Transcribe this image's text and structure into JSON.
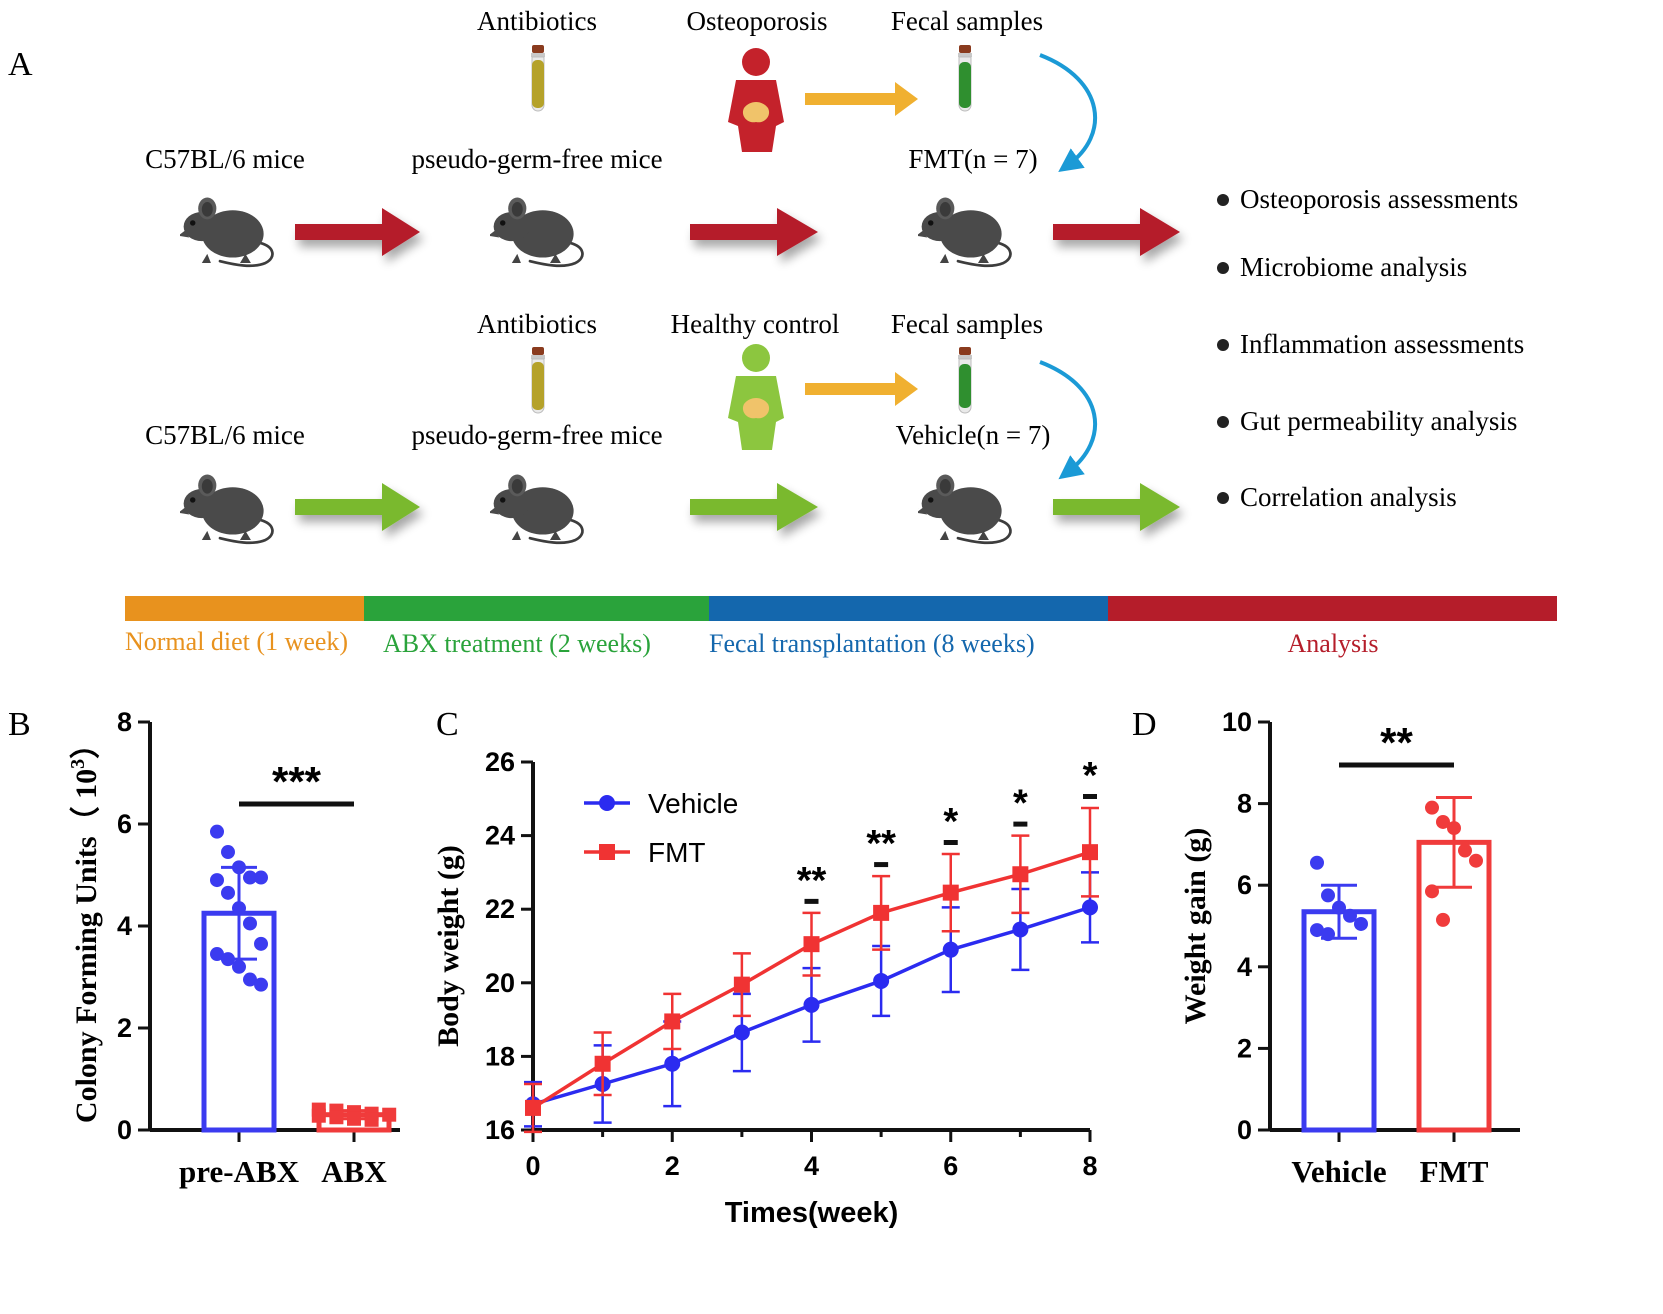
{
  "panel_a": {
    "letter": "A",
    "top_row": {
      "source_labels": [
        "Antibiotics",
        "Osteoporosis",
        "Fecal samples"
      ],
      "mouse_labels": [
        "C57BL/6 mice",
        "pseudo-germ-free mice",
        "FMT(n = 7)"
      ],
      "arrow_color": "#b51d2a",
      "body_color": "#c4222b"
    },
    "bottom_row": {
      "source_labels": [
        "Antibiotics",
        "Healthy control",
        "Fecal samples"
      ],
      "mouse_labels": [
        "C57BL/6 mice",
        "pseudo-germ-free mice",
        "Vehicle(n = 7)"
      ],
      "arrow_color": "#7ab92e",
      "body_color": "#8cc63f"
    },
    "assessments": [
      "Osteoporosis assessments",
      "Microbiome analysis",
      "Inflammation assessments",
      "Gut permeability analysis",
      "Correlation analysis"
    ],
    "timeline": [
      {
        "label": "Normal diet (1 week)",
        "color": "#e8921e"
      },
      {
        "label": "ABX treatment (2 weeks)",
        "color": "#2aa33b"
      },
      {
        "label": "Fecal transplantation (8 weeks)",
        "color": "#1467ad"
      },
      {
        "label": "Analysis",
        "color": "#b51d2a"
      }
    ],
    "orange_arrow_color": "#f0b030",
    "curved_arrow_color": "#1b9ad6"
  },
  "chart_data": [
    {
      "panel": "B",
      "type": "bar",
      "categories": [
        "pre-ABX",
        "ABX"
      ],
      "values": [
        4.25,
        0.3
      ],
      "errors": [
        0.9,
        0.08
      ],
      "points": [
        [
          5.85,
          5.45,
          5.15,
          4.95,
          4.95,
          4.9,
          4.65,
          4.35,
          4.05,
          3.65,
          3.45,
          3.35,
          3.2,
          2.95,
          2.85
        ],
        [
          0.4,
          0.38,
          0.35,
          0.32,
          0.3,
          0.28,
          0.25,
          0.22,
          0.2
        ]
      ],
      "colors": [
        "#3b3bf0",
        "#f03b3b"
      ],
      "ylabel": "Colony Forming Units（ 10",
      "ylabel_exp": "3",
      "ylabel_close": "）",
      "ylim": [
        0,
        8
      ],
      "yticks": [
        0,
        2,
        4,
        6,
        8
      ],
      "significance": "***"
    },
    {
      "panel": "C",
      "type": "line",
      "x": [
        0,
        1,
        2,
        3,
        4,
        5,
        6,
        7,
        8
      ],
      "series": [
        {
          "name": "Vehicle",
          "color": "#2b2bf0",
          "values": [
            16.7,
            17.25,
            17.8,
            18.65,
            19.4,
            20.05,
            20.9,
            21.45,
            22.05
          ],
          "errors": [
            0.6,
            1.05,
            1.15,
            1.05,
            1.0,
            0.95,
            1.15,
            1.1,
            0.95
          ]
        },
        {
          "name": "FMT",
          "color": "#f03333",
          "values": [
            16.6,
            17.8,
            18.95,
            19.95,
            21.05,
            21.9,
            22.45,
            22.95,
            23.55
          ],
          "errors": [
            0.65,
            0.85,
            0.75,
            0.85,
            0.85,
            1.0,
            1.05,
            1.05,
            1.2
          ]
        }
      ],
      "xlabel": "Times(week)",
      "ylabel": "Body weight (g)",
      "xlim": [
        0,
        8
      ],
      "ylim": [
        16,
        26
      ],
      "xticks": [
        0,
        2,
        4,
        6,
        8
      ],
      "yticks": [
        16,
        18,
        20,
        22,
        24,
        26
      ],
      "significance": [
        {
          "x": 4,
          "label": "**"
        },
        {
          "x": 5,
          "label": "**"
        },
        {
          "x": 6,
          "label": "*"
        },
        {
          "x": 7,
          "label": "*"
        },
        {
          "x": 8,
          "label": "*"
        }
      ]
    },
    {
      "panel": "D",
      "type": "bar",
      "categories": [
        "Vehicle",
        "FMT"
      ],
      "values": [
        5.35,
        7.05
      ],
      "errors": [
        0.65,
        1.1
      ],
      "points": [
        [
          6.55,
          5.75,
          5.45,
          5.25,
          5.05,
          4.9,
          4.8
        ],
        [
          7.9,
          7.55,
          7.4,
          6.85,
          6.6,
          5.85,
          5.15
        ]
      ],
      "colors": [
        "#3b3bf0",
        "#f03b3b"
      ],
      "ylabel": "Weight gain (g)",
      "ylim": [
        0,
        10
      ],
      "yticks": [
        0,
        2,
        4,
        6,
        8,
        10
      ],
      "significance": "**"
    }
  ]
}
